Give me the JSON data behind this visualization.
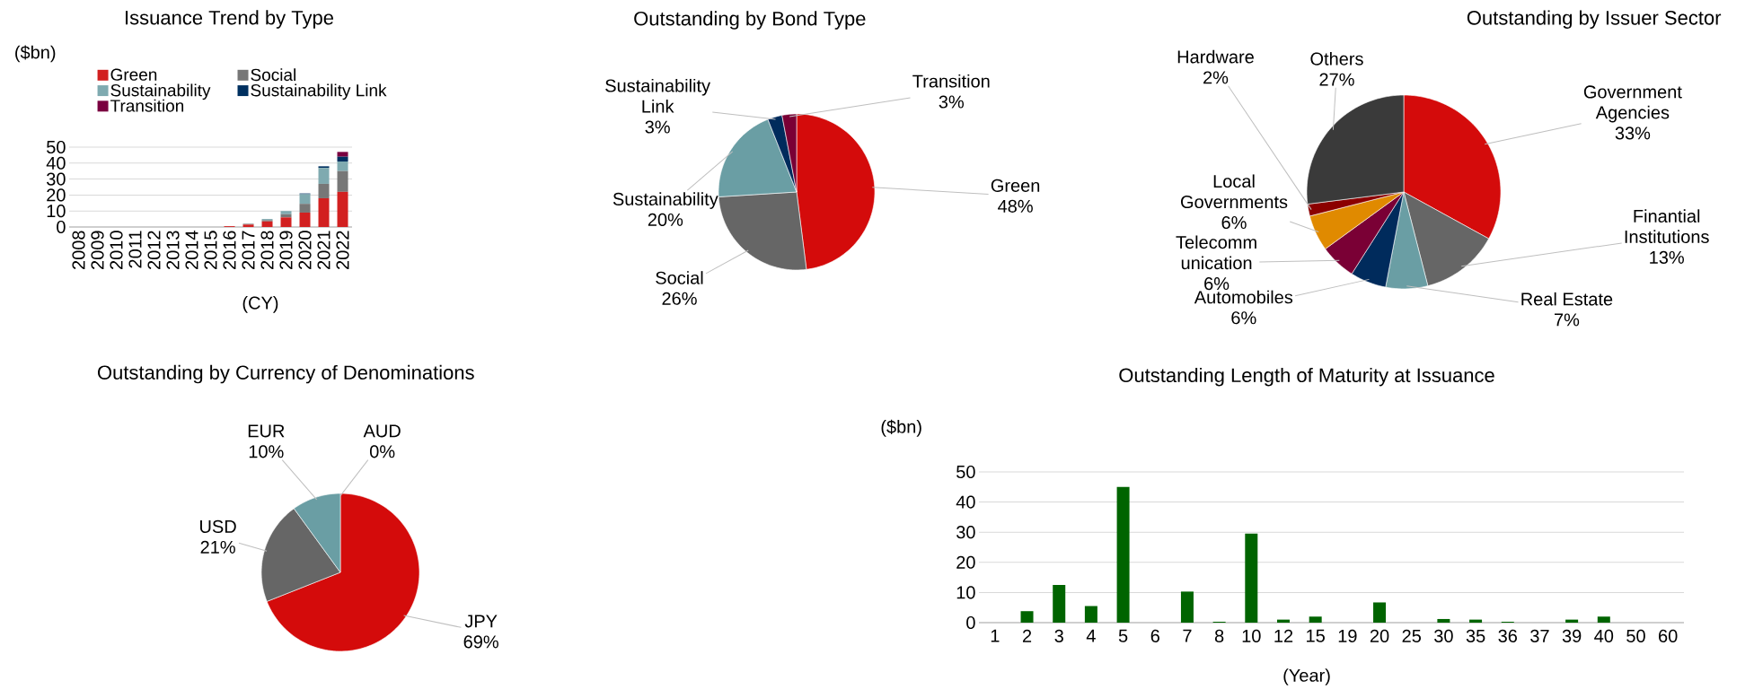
{
  "chart_data": [
    {
      "type": "bar",
      "stacked": true,
      "title": "Issuance Trend by Type",
      "ylabel": "($bn)",
      "xlabel": "(CY)",
      "categories": [
        "2008",
        "2009",
        "2010",
        "2011",
        "2012",
        "2013",
        "2014",
        "2015",
        "2016",
        "2017",
        "2018",
        "2019",
        "2020",
        "2021",
        "2022"
      ],
      "series": [
        {
          "name": "Green",
          "color": "#d22020",
          "values": [
            0,
            0,
            0,
            0,
            0,
            0,
            0,
            0,
            0.5,
            1.5,
            3.5,
            6,
            9,
            18,
            22
          ]
        },
        {
          "name": "Social",
          "color": "#777777",
          "values": [
            0,
            0,
            0,
            0,
            0,
            0,
            0,
            0,
            0,
            0.5,
            0.8,
            2,
            5.5,
            9,
            13
          ]
        },
        {
          "name": "Sustainability",
          "color": "#7faab0",
          "values": [
            0,
            0,
            0,
            0,
            0,
            0,
            0,
            0,
            0,
            0,
            0.7,
            2,
            6,
            10,
            6
          ]
        },
        {
          "name": "Sustainability Link",
          "color": "#003060",
          "values": [
            0,
            0,
            0,
            0,
            0,
            0,
            0,
            0,
            0,
            0,
            0,
            0,
            0.5,
            1,
            3
          ]
        },
        {
          "name": "Transition",
          "color": "#7a0040",
          "values": [
            0,
            0,
            0,
            0,
            0,
            0,
            0,
            0,
            0,
            0,
            0,
            0,
            0,
            0,
            3
          ]
        }
      ],
      "ylim": [
        0,
        50
      ],
      "yticks": [
        0,
        10,
        20,
        30,
        40,
        50
      ],
      "grid": "y",
      "legend": "top"
    },
    {
      "type": "pie",
      "title": "Outstanding by Bond Type",
      "categories": [
        "Green",
        "Social",
        "Sustainability",
        "Sustainability Link",
        "Transition"
      ],
      "values": [
        48,
        26,
        20,
        3,
        3
      ],
      "value_labels": [
        "48%",
        "26%",
        "20%",
        "3%",
        "3%"
      ],
      "colors": [
        "#d40b0b",
        "#666666",
        "#6a9ea4",
        "#002b5c",
        "#7a0035"
      ]
    },
    {
      "type": "pie",
      "title": "Outstanding by Issuer Sector",
      "categories": [
        "Government Agencies",
        "Finantial Institutions",
        "Real Estate",
        "Automobiles",
        "Telecomm unication",
        "Local Governments",
        "Hardware",
        "Others"
      ],
      "values": [
        33,
        13,
        7,
        6,
        6,
        6,
        2,
        27
      ],
      "value_labels": [
        "33%",
        "13%",
        "7%",
        "6%",
        "6%",
        "6%",
        "2%",
        "27%"
      ],
      "colors": [
        "#d40b0b",
        "#666666",
        "#6a9ea4",
        "#002b5c",
        "#7a0035",
        "#e08a00",
        "#8b0000",
        "#3a3a3a"
      ]
    },
    {
      "type": "pie",
      "title": "Outstanding by Currency of Denominations",
      "categories": [
        "JPY",
        "USD",
        "EUR",
        "AUD"
      ],
      "values": [
        69,
        21,
        10,
        0
      ],
      "value_labels": [
        "69%",
        "21%",
        "10%",
        "0%"
      ],
      "colors": [
        "#d40b0b",
        "#666666",
        "#6a9ea4",
        "#002b5c"
      ]
    },
    {
      "type": "bar",
      "title": "Outstanding Length of Maturity at Issuance",
      "ylabel": "($bn)",
      "xlabel": "(Year)",
      "categories": [
        "1",
        "2",
        "3",
        "4",
        "5",
        "6",
        "7",
        "8",
        "10",
        "12",
        "15",
        "19",
        "20",
        "25",
        "30",
        "35",
        "36",
        "37",
        "39",
        "40",
        "50",
        "60"
      ],
      "values": [
        0,
        3.8,
        12.5,
        5.5,
        45,
        0,
        10.3,
        0.3,
        29.5,
        1,
        2,
        0,
        6.7,
        0,
        1.2,
        1,
        0.3,
        0,
        1,
        2,
        0,
        0
      ],
      "color": "#006400",
      "ylim": [
        0,
        50
      ],
      "yticks": [
        0,
        10,
        20,
        30,
        40,
        50
      ],
      "grid": "y"
    }
  ]
}
